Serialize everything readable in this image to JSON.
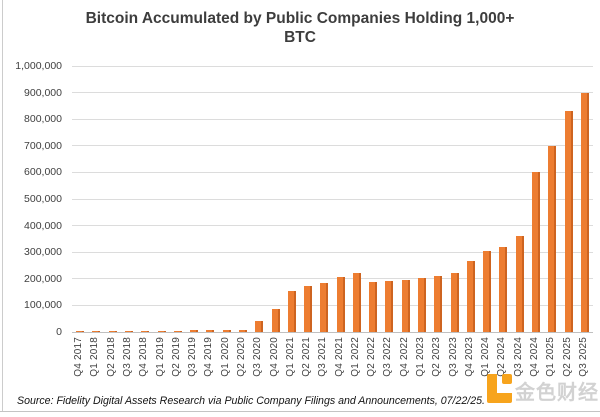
{
  "header": {
    "title_line1": "Bitcoin Accumulated by Public Companies Holding 1,000+",
    "title_line2": "BTC"
  },
  "chart_data": {
    "type": "bar",
    "title": "Bitcoin Accumulated by Public Companies Holding 1,000+ BTC",
    "xlabel": "",
    "ylabel": "",
    "ylim": [
      0,
      1000000
    ],
    "y_tick_step": 100000,
    "y_tick_labels": [
      "0",
      "100,000",
      "200,000",
      "300,000",
      "400,000",
      "500,000",
      "600,000",
      "700,000",
      "800,000",
      "900,000",
      "1,000,000"
    ],
    "grid": true,
    "legend": false,
    "categories": [
      "Q4 2017",
      "Q1 2018",
      "Q2 2018",
      "Q3 2018",
      "Q4 2018",
      "Q1 2019",
      "Q2 2019",
      "Q3 2019",
      "Q4 2019",
      "Q1 2020",
      "Q2 2020",
      "Q3 2020",
      "Q4 2020",
      "Q1 2021",
      "Q2 2021",
      "Q3 2021",
      "Q4 2021",
      "Q1 2022",
      "Q2 2022",
      "Q3 2022",
      "Q4 2022",
      "Q1 2023",
      "Q2 2023",
      "Q3 2023",
      "Q4 2023",
      "Q1 2024",
      "Q2 2024",
      "Q3 2024",
      "Q4 2024",
      "Q1 2025",
      "Q2 2025",
      "Q3 2025"
    ],
    "values": [
      2000,
      2000,
      3000,
      4000,
      5000,
      5000,
      5000,
      6000,
      6000,
      7000,
      8000,
      40000,
      85000,
      155000,
      172000,
      186000,
      205000,
      220000,
      188000,
      191000,
      196000,
      202000,
      212000,
      223000,
      267000,
      303000,
      319000,
      360000,
      600000,
      700000,
      832000,
      898000
    ]
  },
  "footer": {
    "source": "Source: Fidelity Digital Assets Research via Public Company Filings and Announcements, 07/22/25."
  },
  "watermark": {
    "logo": "jinse-finance-logo",
    "text": "金色财经",
    "logo_color": "#F7A41D"
  },
  "colors": {
    "bar": "#ED7D31",
    "bar_edge": "#CE6420",
    "gridline": "#DCDCDC",
    "axis_line": "#C0C0C0",
    "title_text": "#3D3D3D",
    "label_text": "#404040"
  }
}
